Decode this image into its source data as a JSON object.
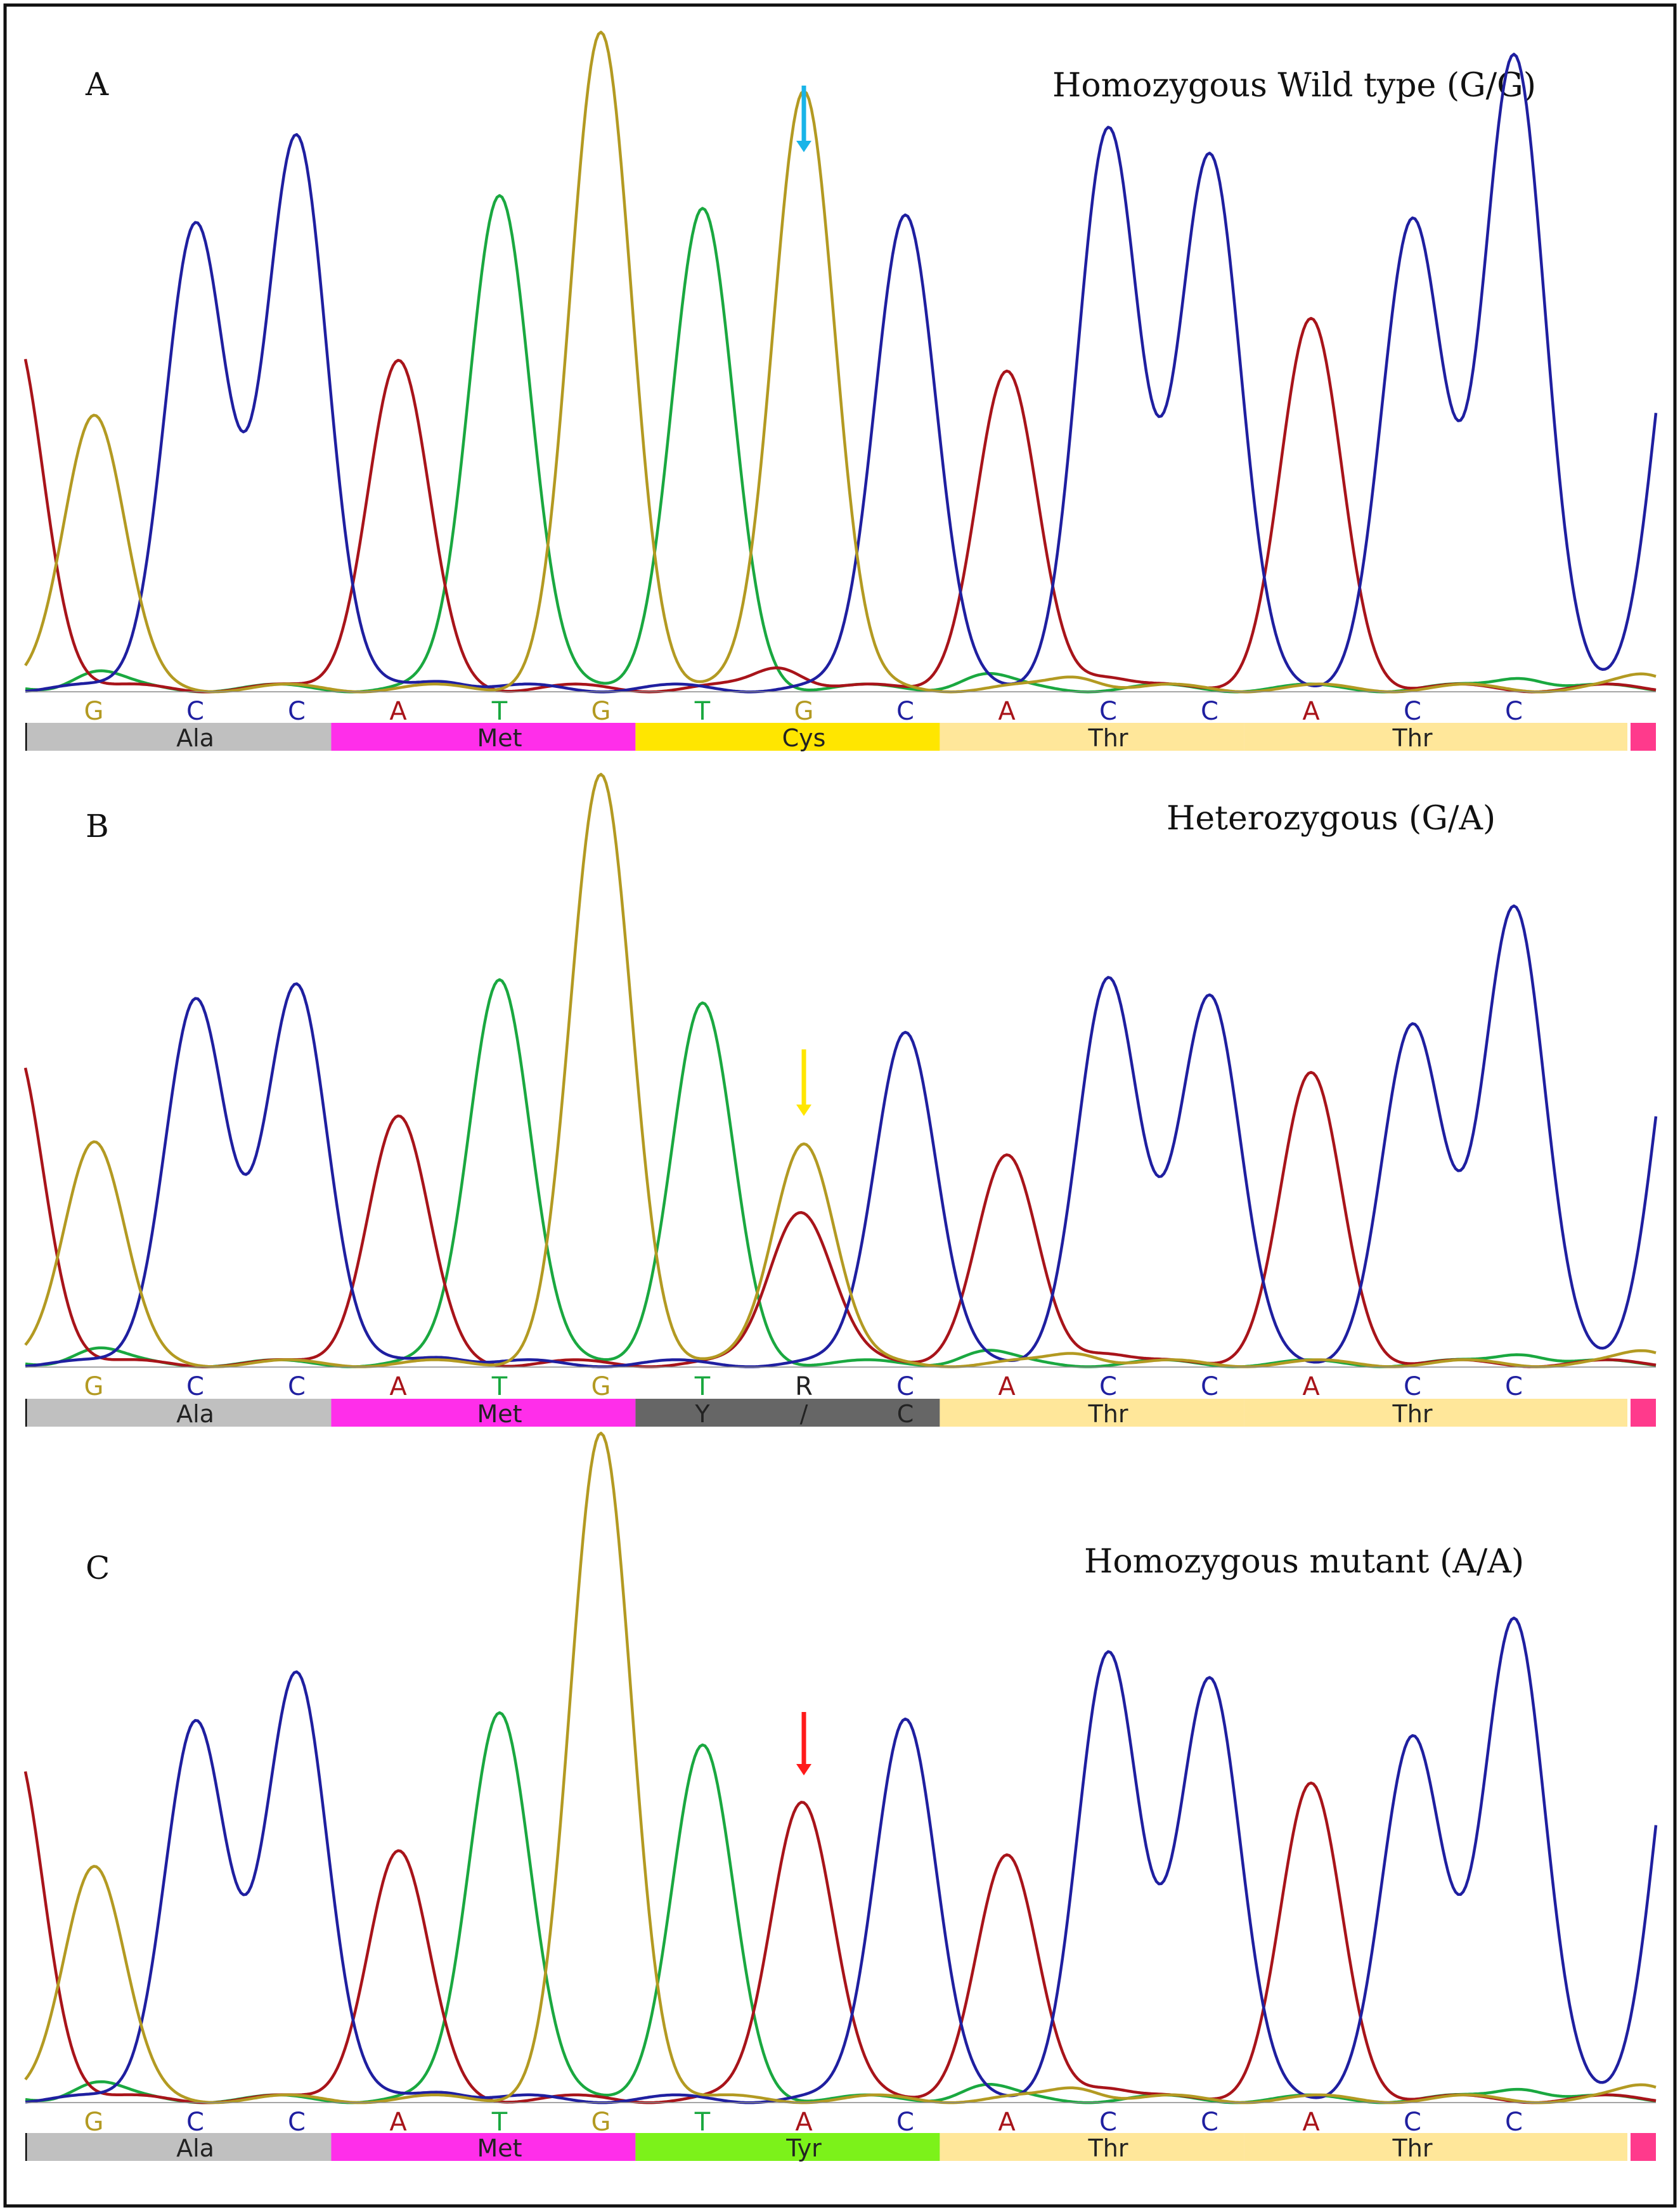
{
  "chart_data": [
    {
      "type": "chromatogram",
      "panel": "A",
      "title": "Homozygous Wild type (G/G)",
      "bases": [
        "G",
        "C",
        "C",
        "A",
        "T",
        "G",
        "T",
        "G",
        "C",
        "A",
        "C",
        "C",
        "A",
        "C",
        "C"
      ],
      "peak_heights": [
        0.42,
        0.71,
        0.85,
        0.5,
        0.76,
        1.0,
        0.73,
        0.92,
        0.73,
        0.48,
        0.85,
        0.82,
        0.56,
        0.71,
        0.97
      ],
      "secondary_peaks": [],
      "codons": [
        {
          "label": "Ala",
          "color": "#c0c0c0"
        },
        {
          "label": "Met",
          "color": "#ff2eea"
        },
        {
          "label": "Cys",
          "color": "#ffe600"
        },
        {
          "label": "Thr",
          "color": "#ffe79a"
        },
        {
          "label": "Thr",
          "color": "#ffe79a"
        }
      ],
      "arrow": {
        "base_index": 7,
        "color": "#19b4e8"
      }
    },
    {
      "type": "chromatogram",
      "panel": "B",
      "title": "Heterozygous (G/A)",
      "bases": [
        "G",
        "C",
        "C",
        "A",
        "T",
        "G",
        "T",
        "R",
        "C",
        "A",
        "C",
        "C",
        "A",
        "C",
        "C"
      ],
      "peak_heights": [
        0.38,
        0.62,
        0.65,
        0.42,
        0.66,
        1.0,
        0.61,
        0.38,
        0.57,
        0.35,
        0.65,
        0.63,
        0.49,
        0.57,
        0.78
      ],
      "secondary_peaks": [
        {
          "base_index": 7,
          "trace": "A",
          "height": 0.24
        }
      ],
      "codons": [
        {
          "label": "Ala",
          "color": "#c0c0c0"
        },
        {
          "label": "Met",
          "color": "#ff2eea"
        },
        {
          "label": "Y / C",
          "color": "#666666",
          "text_color": "#ffffff"
        },
        {
          "label": "Thr",
          "color": "#ffe79a"
        },
        {
          "label": "Thr",
          "color": "#ffe79a"
        }
      ],
      "arrow": {
        "base_index": 7,
        "color": "#ffe600"
      }
    },
    {
      "type": "chromatogram",
      "panel": "C",
      "title": "Homozygous mutant (A/A)",
      "bases": [
        "G",
        "C",
        "C",
        "A",
        "T",
        "G",
        "T",
        "A",
        "C",
        "A",
        "C",
        "C",
        "A",
        "C",
        "C"
      ],
      "peak_heights": [
        0.36,
        0.58,
        0.66,
        0.38,
        0.6,
        1.02,
        0.54,
        0.44,
        0.59,
        0.37,
        0.68,
        0.65,
        0.48,
        0.55,
        0.74
      ],
      "secondary_peaks": [],
      "codons": [
        {
          "label": "Ala",
          "color": "#c0c0c0"
        },
        {
          "label": "Met",
          "color": "#ff2eea"
        },
        {
          "label": "Tyr",
          "color": "#7cf21a"
        },
        {
          "label": "Thr",
          "color": "#ffe79a"
        },
        {
          "label": "Thr",
          "color": "#ffe79a"
        }
      ],
      "arrow": {
        "base_index": 7,
        "color": "#ff1a1a"
      }
    }
  ],
  "trace_colors": {
    "G": "#b39a22",
    "C": "#1f1fa0",
    "A": "#a8141a",
    "T": "#1aa840"
  }
}
